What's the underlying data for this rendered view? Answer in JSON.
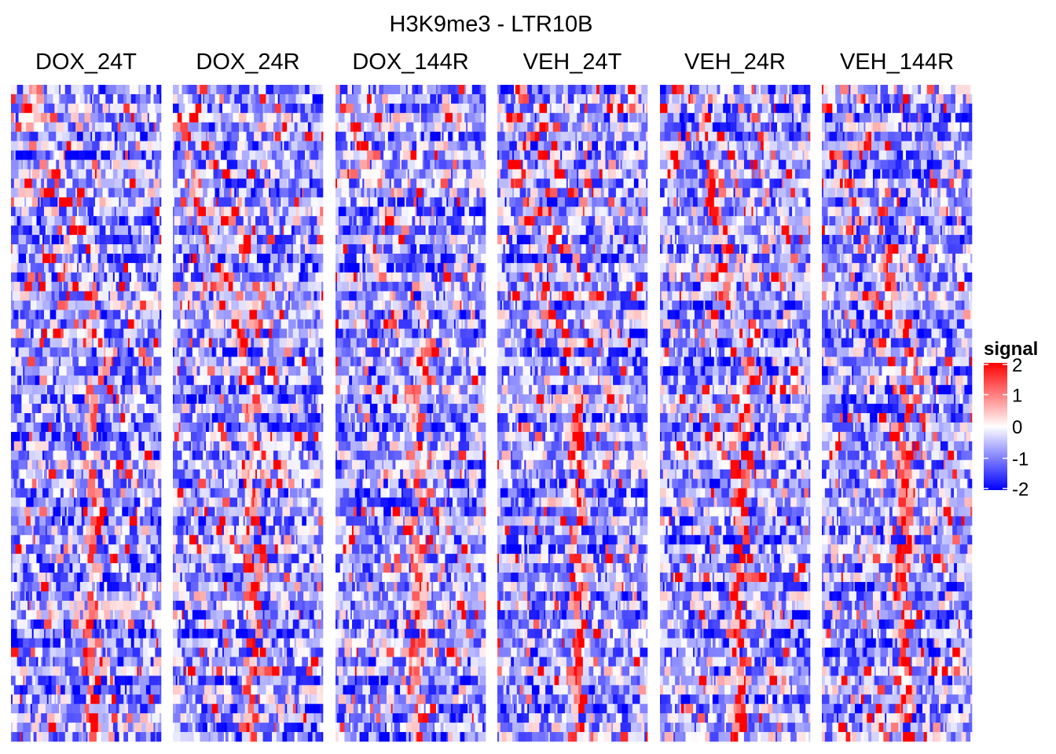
{
  "chart_data": {
    "type": "heatmap",
    "title": "H3K9me3 - LTR10B",
    "panels": [
      "DOX_24T",
      "DOX_24R",
      "DOX_144R",
      "VEH_24T",
      "VEH_24R",
      "VEH_144R"
    ],
    "rows_per_panel": 70,
    "bins_per_row": 100,
    "legend": {
      "title": "signal",
      "placement": "right",
      "range": [
        -2,
        2
      ],
      "ticks": [
        "2",
        "1",
        "0",
        "-1",
        "-2"
      ],
      "tick_values": [
        2,
        1,
        0,
        -1,
        -2
      ],
      "colors": {
        "low": "#0000ff",
        "mid": "#ffffff",
        "high": "#ff0000"
      }
    },
    "pattern": "Each panel shows per-region signal across bins (rows sorted by peak position). A diagonal band of high signal (red) runs from upper-left toward the panel centre at the bottom; VEH panels show a stronger central enrichment band."
  }
}
